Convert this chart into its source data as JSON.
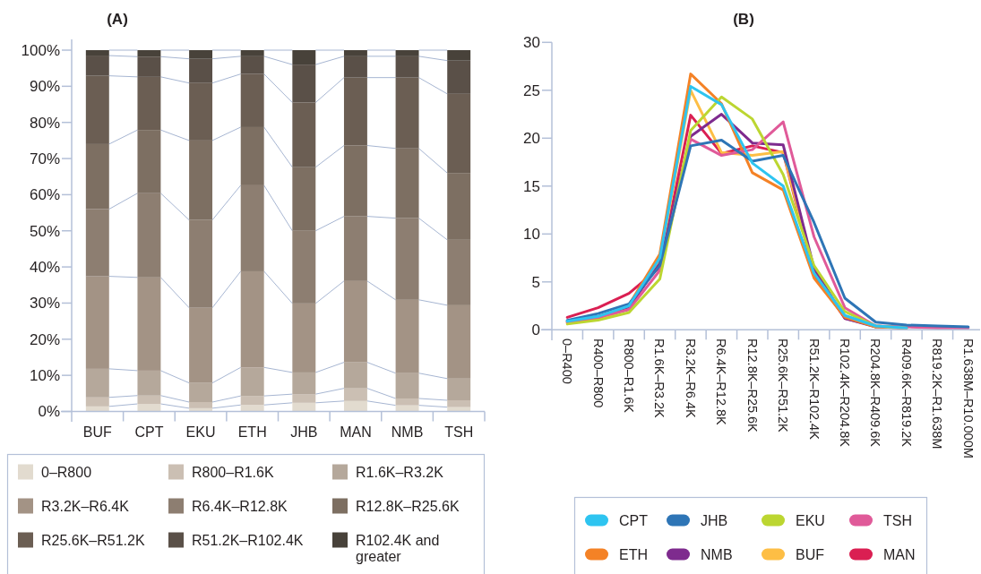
{
  "chart_data": [
    {
      "type": "bar",
      "title": "(A)",
      "stacked": true,
      "categories": [
        "BUF",
        "CPT",
        "EKU",
        "ETH",
        "JHB",
        "MAN",
        "NMB",
        "TSH"
      ],
      "series": [
        {
          "name": "0–R800",
          "color": "#e2dbcf",
          "values": [
            1.4,
            2.1,
            0.9,
            1.8,
            2.4,
            2.9,
            1.7,
            1.2
          ]
        },
        {
          "name": "R800–R1.6K",
          "color": "#cbbfb3",
          "values": [
            2.5,
            2.3,
            1.7,
            2.5,
            2.4,
            3.5,
            1.9,
            1.9
          ]
        },
        {
          "name": "R1.6K–R3.2K",
          "color": "#b5a89b",
          "values": [
            7.9,
            6.9,
            5.3,
            7.9,
            6.0,
            7.2,
            7.0,
            6.0
          ]
        },
        {
          "name": "R3.2K–R6.4K",
          "color": "#a39385",
          "values": [
            25.6,
            25.8,
            20.8,
            26.6,
            19.1,
            22.5,
            20.3,
            20.3
          ]
        },
        {
          "name": "R6.4K–R12.8K",
          "color": "#8d7e71",
          "values": [
            18.6,
            23.3,
            24.3,
            23.8,
            20.1,
            17.9,
            22.6,
            18.1
          ]
        },
        {
          "name": "R12.8K–R25.6K",
          "color": "#7d6f62",
          "values": [
            18.0,
            17.5,
            22.0,
            16.1,
            17.6,
            19.6,
            19.3,
            18.5
          ]
        },
        {
          "name": "R25.6K–R51.2K",
          "color": "#6b5e53",
          "values": [
            18.9,
            14.7,
            15.9,
            14.7,
            17.9,
            18.8,
            19.6,
            21.9
          ]
        },
        {
          "name": "R51.2K–R102.4K",
          "color": "#5a5048",
          "values": [
            5.6,
            5.6,
            6.7,
            4.9,
            10.5,
            5.9,
            5.9,
            9.2
          ]
        },
        {
          "name": "R102.4K and greater",
          "color": "#48423a",
          "values": [
            1.5,
            1.8,
            2.4,
            1.7,
            4.0,
            1.7,
            1.7,
            2.9
          ]
        }
      ],
      "ylim": [
        0,
        100
      ],
      "yticks": [
        {
          "value": 0,
          "label": "0%"
        },
        {
          "value": 10,
          "label": "10%"
        },
        {
          "value": 20,
          "label": "20%"
        },
        {
          "value": 30,
          "label": "30%"
        },
        {
          "value": 40,
          "label": "40%"
        },
        {
          "value": 50,
          "label": "50%"
        },
        {
          "value": 60,
          "label": "60%"
        },
        {
          "value": 70,
          "label": "70%"
        },
        {
          "value": 80,
          "label": "80%"
        },
        {
          "value": 90,
          "label": "90%"
        },
        {
          "value": 100,
          "label": "100%"
        }
      ],
      "legend": "bottom"
    },
    {
      "type": "line",
      "title": "(B)",
      "categories": [
        "0–R400",
        "R400–R800",
        "R800–R1.6K",
        "R1.6K–R3.2K",
        "R3.2K–R6.4K",
        "R6.4K–R12.8K",
        "R12.8K–R25.6K",
        "R25.6K–R51.2K",
        "R51.2K–R102.4K",
        "R102.4K–R204.8K",
        "R204.8K–R409.6K",
        "R409.6K–R819.2K",
        "R819.2K–R1.638M",
        "R1.638M–R10.000M"
      ],
      "series": [
        {
          "name": "CPT",
          "color": "#2ec4f0",
          "values": [
            0.9,
            1.4,
            2.5,
            7.5,
            25.4,
            23.5,
            17.4,
            15.0,
            5.9,
            1.5,
            0.4,
            0.2,
            null,
            null
          ]
        },
        {
          "name": "JHB",
          "color": "#2e75b6",
          "values": [
            1.0,
            1.7,
            2.7,
            6.7,
            19.2,
            19.8,
            17.6,
            18.2,
            11.2,
            3.3,
            0.8,
            0.5,
            0.4,
            0.3
          ]
        },
        {
          "name": "EKU",
          "color": "#bcd631",
          "values": [
            0.6,
            1.0,
            1.8,
            5.3,
            20.8,
            24.3,
            22.0,
            16.2,
            6.7,
            1.9,
            0.4,
            0.2,
            null,
            null
          ]
        },
        {
          "name": "TSH",
          "color": "#e05a99",
          "values": [
            0.8,
            1.3,
            2.1,
            6.2,
            19.9,
            18.2,
            18.8,
            21.7,
            9.7,
            2.3,
            0.4,
            0.3,
            0.2,
            0.2
          ]
        },
        {
          "name": "ETH",
          "color": "#f48226",
          "values": [
            0.8,
            1.2,
            2.6,
            7.9,
            26.7,
            23.6,
            16.4,
            14.6,
            5.4,
            1.3,
            0.3,
            0.2,
            null,
            null
          ]
        },
        {
          "name": "NMB",
          "color": "#7e2b8e",
          "values": [
            0.9,
            1.4,
            2.4,
            6.9,
            20.2,
            22.5,
            19.5,
            19.3,
            6.4,
            1.2,
            0.3,
            0.2,
            null,
            null
          ]
        },
        {
          "name": "BUF",
          "color": "#fdbe45",
          "values": [
            0.7,
            1.1,
            2.2,
            7.2,
            25.0,
            18.5,
            18.2,
            18.6,
            6.1,
            1.4,
            0.3,
            null,
            null,
            null
          ]
        },
        {
          "name": "MAN",
          "color": "#da1f52",
          "values": [
            1.3,
            2.3,
            3.8,
            6.5,
            22.4,
            18.4,
            19.2,
            18.5,
            5.8,
            1.2,
            0.4,
            0.2,
            null,
            null
          ]
        }
      ],
      "ylim": [
        0,
        30
      ],
      "yticks": [
        0,
        5,
        10,
        15,
        20,
        25,
        30
      ],
      "legend": "bottom"
    }
  ]
}
